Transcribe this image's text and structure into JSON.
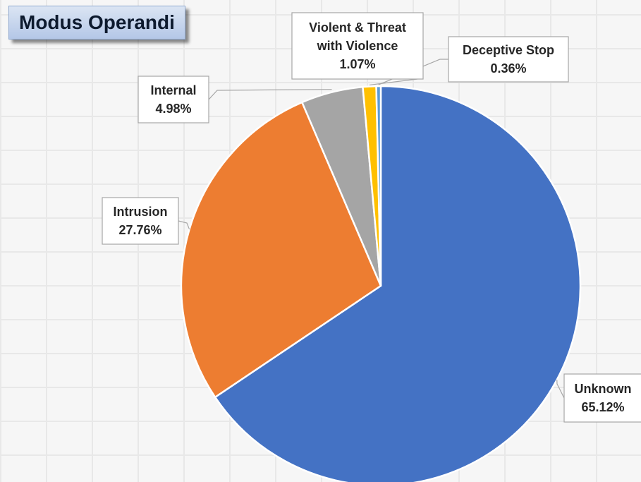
{
  "chart_data": {
    "type": "pie",
    "title": "Modus Operandi",
    "slices": [
      {
        "label": "Unknown",
        "value": 65.12,
        "display": "65.12%",
        "color": "#4472c4"
      },
      {
        "label": "Intrusion",
        "value": 27.76,
        "display": "27.76%",
        "color": "#ed7d31"
      },
      {
        "label": "Internal",
        "value": 4.98,
        "display": "4.98%",
        "color": "#a5a5a5"
      },
      {
        "label": "Violent & Threat with Violence",
        "value": 1.07,
        "display": "1.07%",
        "color": "#ffc000"
      },
      {
        "label": "Deceptive Stop",
        "value": 0.36,
        "display": "0.36%",
        "color": "#5b9bd5"
      }
    ]
  }
}
